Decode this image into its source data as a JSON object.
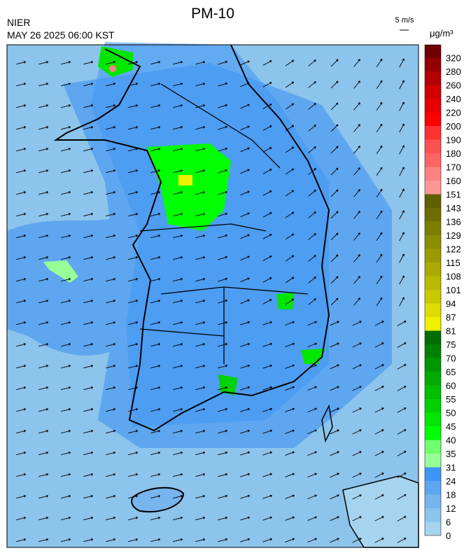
{
  "header": {
    "title": "PM-10",
    "agency": "NIER",
    "datetime": "MAY 26 2025 06:00 KST",
    "wind_scale": "5 m/s",
    "unit": "μg/m³"
  },
  "legend": {
    "levels": [
      0,
      6,
      12,
      18,
      24,
      31,
      35,
      40,
      45,
      50,
      55,
      60,
      65,
      70,
      75,
      81,
      87,
      94,
      101,
      108,
      115,
      122,
      129,
      136,
      143,
      151,
      160,
      170,
      180,
      190,
      200,
      220,
      240,
      260,
      280,
      320
    ],
    "colors": [
      "#a6d4ef",
      "#8cc4ec",
      "#78b4ee",
      "#5ea6f0",
      "#3f95f5",
      "#96ff96",
      "#6eff6e",
      "#00ff00",
      "#00e600",
      "#00d200",
      "#00be00",
      "#00aa00",
      "#009600",
      "#008200",
      "#006e00",
      "#f0f000",
      "#dcdc00",
      "#c8c800",
      "#b9b900",
      "#aaaa00",
      "#9b9b00",
      "#8c8c00",
      "#7d7d00",
      "#6e6e00",
      "#5f5f00",
      "#ff9696",
      "#ff8080",
      "#ff6464",
      "#ff5050",
      "#ff3232",
      "#ff0000",
      "#e60000",
      "#d20000",
      "#b40000",
      "#960000",
      "#6e0000"
    ]
  }
}
